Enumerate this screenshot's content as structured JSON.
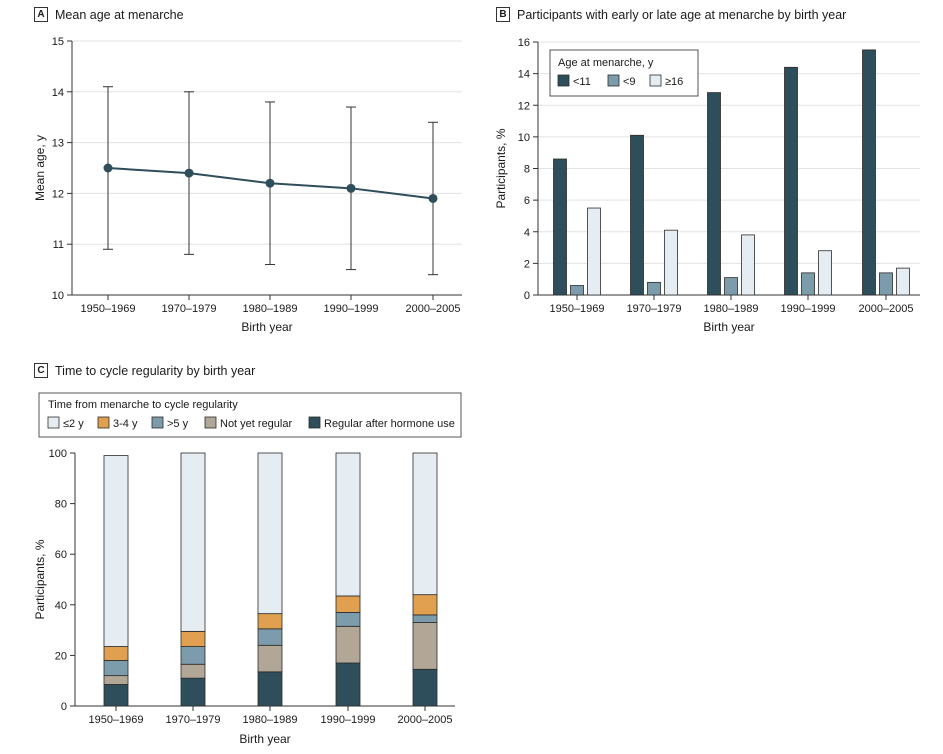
{
  "panels": {
    "A": {
      "letter": "A",
      "title": "Mean age at menarche"
    },
    "B": {
      "letter": "B",
      "title": "Participants with early or late age at menarche by birth year"
    },
    "C": {
      "letter": "C",
      "title": "Time to cycle regularity by birth year"
    }
  },
  "colors": {
    "dark": "#2e4e5c",
    "mid": "#7d9cab",
    "light": "#e6edf2",
    "orange": "#e0a050",
    "tan": "#b2a797",
    "line": "#2e4e5c",
    "grid": "#e3e3e3"
  },
  "chart_data": [
    {
      "id": "A",
      "type": "line",
      "title": "Mean age at menarche",
      "categories": [
        "1950-1969",
        "1970-1979",
        "1980-1989",
        "1990-1999",
        "2000-2005"
      ],
      "values": [
        12.5,
        12.4,
        12.2,
        12.1,
        11.9
      ],
      "error_low": [
        10.9,
        10.8,
        10.6,
        10.5,
        10.4
      ],
      "error_high": [
        14.1,
        14.0,
        13.8,
        13.7,
        13.4
      ],
      "xlabel": "Birth year",
      "ylabel": "Mean age, y",
      "ylim": [
        10,
        15
      ],
      "yticks": [
        10,
        11,
        12,
        13,
        14,
        15
      ],
      "grid": true
    },
    {
      "id": "B",
      "type": "bar",
      "title": "Participants with early or late age at menarche by birth year",
      "categories": [
        "1950-1969",
        "1970-1979",
        "1980-1989",
        "1990-1999",
        "2000-2005"
      ],
      "legend_title": "Age at menarche, y",
      "legend_position": "top-left",
      "series": [
        {
          "name": "<11",
          "color": "dark",
          "values": [
            8.6,
            10.1,
            12.8,
            14.4,
            15.5
          ]
        },
        {
          "name": "<9",
          "color": "mid",
          "values": [
            0.6,
            0.8,
            1.1,
            1.4,
            1.4
          ]
        },
        {
          "name": "≥16",
          "color": "light",
          "values": [
            5.5,
            4.1,
            3.8,
            2.8,
            1.7
          ]
        }
      ],
      "xlabel": "Birth year",
      "ylabel": "Participants, %",
      "ylim": [
        0,
        16
      ],
      "yticks": [
        0,
        2,
        4,
        6,
        8,
        10,
        12,
        14,
        16
      ],
      "grid": true
    },
    {
      "id": "C",
      "type": "bar",
      "stacked": true,
      "title": "Time to cycle regularity by birth year",
      "categories": [
        "1950-1969",
        "1970-1979",
        "1980-1989",
        "1990-1999",
        "2000-2005"
      ],
      "legend_title": "Time from menarche to cycle regularity",
      "legend_position": "top",
      "series": [
        {
          "name": "Regular after hormone use",
          "color": "dark",
          "values": [
            8.5,
            11,
            13.5,
            17,
            14.5
          ]
        },
        {
          "name": "Not yet regular",
          "color": "tan",
          "values": [
            3.5,
            5.5,
            10.5,
            14.5,
            18.5
          ]
        },
        {
          "name": ">5 y",
          "color": "mid",
          "values": [
            6,
            7,
            6.5,
            5.5,
            3
          ]
        },
        {
          "name": "3-4 y",
          "color": "orange",
          "values": [
            5.5,
            6,
            6,
            6.5,
            8
          ]
        },
        {
          "name": "≤2 y",
          "color": "light",
          "values": [
            75.5,
            70.5,
            63.5,
            56.5,
            56
          ]
        }
      ],
      "legend_order": [
        "≤2 y",
        "3-4 y",
        ">5 y",
        "Not yet regular",
        "Regular after hormone use"
      ],
      "xlabel": "Birth year",
      "ylabel": "Participants, %",
      "ylim": [
        0,
        100
      ],
      "yticks": [
        0,
        20,
        40,
        60,
        80,
        100
      ],
      "grid": false
    }
  ]
}
